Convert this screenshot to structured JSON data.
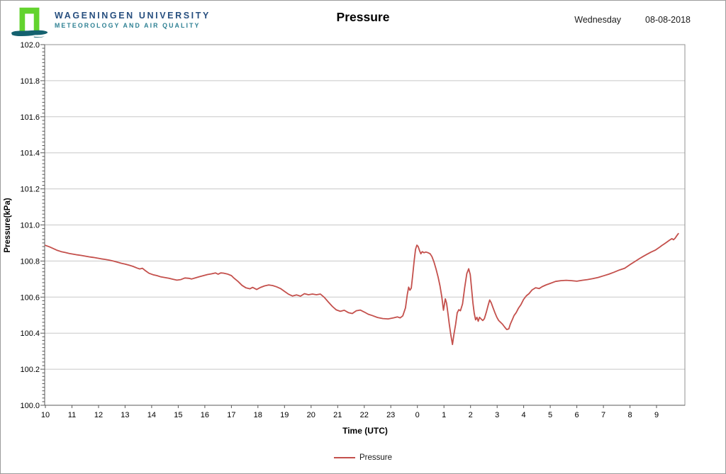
{
  "header": {
    "university_line1": "WAGENINGEN UNIVERSITY",
    "university_line2": "METEOROLOGY AND AIR QUALITY",
    "title": "Pressure",
    "weekday": "Wednesday",
    "date": "08-08-2018"
  },
  "legend": {
    "label": "Pressure"
  },
  "colors": {
    "line": "#c4504c",
    "grid": "#c8c8c8",
    "plot_border": "#909090",
    "axis": "#595959",
    "logo_green": "#63d32e",
    "logo_teal": "#14616f",
    "uni_text": "#274f7f",
    "uni_subtext": "#2e8093"
  },
  "chart_data": {
    "type": "line",
    "title": "Pressure",
    "xlabel": "Time (UTC)",
    "ylabel": "Pressure(kPa)",
    "ylim": [
      100.0,
      102.0
    ],
    "xlim_hours": [
      10,
      34.1
    ],
    "ytick_interval": 0.2,
    "ytick_minor": 0.02,
    "grid": "horizontal-major",
    "legend_position": "bottom-center",
    "y_tick_labels": [
      "102.0",
      "101.8",
      "101.6",
      "101.4",
      "101.2",
      "101.0",
      "100.8",
      "100.6",
      "100.4",
      "100.2",
      "100.0"
    ],
    "x_tick_labels": [
      "10",
      "11",
      "12",
      "13",
      "14",
      "15",
      "16",
      "17",
      "18",
      "19",
      "20",
      "21",
      "22",
      "23",
      "0",
      "1",
      "2",
      "3",
      "4",
      "5",
      "6",
      "7",
      "8",
      "9"
    ],
    "series": [
      {
        "name": "Pressure",
        "color": "#c4504c",
        "x_unit": "hours since first-day midnight (24+ = next day)",
        "points": [
          [
            10.0,
            100.887
          ],
          [
            10.15,
            100.879
          ],
          [
            10.3,
            100.869
          ],
          [
            10.45,
            100.859
          ],
          [
            10.6,
            100.852
          ],
          [
            10.75,
            100.847
          ],
          [
            10.9,
            100.842
          ],
          [
            11.05,
            100.838
          ],
          [
            11.2,
            100.834
          ],
          [
            11.35,
            100.831
          ],
          [
            11.5,
            100.827
          ],
          [
            11.65,
            100.823
          ],
          [
            11.8,
            100.82
          ],
          [
            11.95,
            100.816
          ],
          [
            12.1,
            100.812
          ],
          [
            12.25,
            100.809
          ],
          [
            12.4,
            100.805
          ],
          [
            12.55,
            100.8
          ],
          [
            12.7,
            100.794
          ],
          [
            12.85,
            100.788
          ],
          [
            13.0,
            100.783
          ],
          [
            13.15,
            100.777
          ],
          [
            13.3,
            100.77
          ],
          [
            13.45,
            100.761
          ],
          [
            13.55,
            100.756
          ],
          [
            13.65,
            100.76
          ],
          [
            13.75,
            100.748
          ],
          [
            13.9,
            100.732
          ],
          [
            14.05,
            100.724
          ],
          [
            14.2,
            100.719
          ],
          [
            14.35,
            100.712
          ],
          [
            14.5,
            100.708
          ],
          [
            14.65,
            100.704
          ],
          [
            14.8,
            100.699
          ],
          [
            14.95,
            100.694
          ],
          [
            15.1,
            100.697
          ],
          [
            15.25,
            100.706
          ],
          [
            15.4,
            100.704
          ],
          [
            15.5,
            100.7
          ],
          [
            15.65,
            100.707
          ],
          [
            15.8,
            100.713
          ],
          [
            15.95,
            100.719
          ],
          [
            16.1,
            100.725
          ],
          [
            16.25,
            100.729
          ],
          [
            16.4,
            100.734
          ],
          [
            16.5,
            100.727
          ],
          [
            16.6,
            100.734
          ],
          [
            16.7,
            100.733
          ],
          [
            16.85,
            100.728
          ],
          [
            17.0,
            100.719
          ],
          [
            17.1,
            100.705
          ],
          [
            17.25,
            100.687
          ],
          [
            17.4,
            100.665
          ],
          [
            17.55,
            100.651
          ],
          [
            17.7,
            100.646
          ],
          [
            17.8,
            100.654
          ],
          [
            17.95,
            100.642
          ],
          [
            18.1,
            100.654
          ],
          [
            18.25,
            100.662
          ],
          [
            18.4,
            100.667
          ],
          [
            18.55,
            100.664
          ],
          [
            18.7,
            100.657
          ],
          [
            18.85,
            100.647
          ],
          [
            19.0,
            100.632
          ],
          [
            19.15,
            100.616
          ],
          [
            19.3,
            100.606
          ],
          [
            19.45,
            100.612
          ],
          [
            19.6,
            100.605
          ],
          [
            19.75,
            100.619
          ],
          [
            19.9,
            100.613
          ],
          [
            20.05,
            100.617
          ],
          [
            20.2,
            100.613
          ],
          [
            20.35,
            100.617
          ],
          [
            20.5,
            100.598
          ],
          [
            20.65,
            100.572
          ],
          [
            20.8,
            100.548
          ],
          [
            20.95,
            100.529
          ],
          [
            21.1,
            100.521
          ],
          [
            21.25,
            100.527
          ],
          [
            21.4,
            100.514
          ],
          [
            21.55,
            100.509
          ],
          [
            21.7,
            100.524
          ],
          [
            21.85,
            100.528
          ],
          [
            22.0,
            100.517
          ],
          [
            22.15,
            100.505
          ],
          [
            22.3,
            100.498
          ],
          [
            22.5,
            100.487
          ],
          [
            22.7,
            100.481
          ],
          [
            22.9,
            100.479
          ],
          [
            23.1,
            100.485
          ],
          [
            23.25,
            100.49
          ],
          [
            23.35,
            100.485
          ],
          [
            23.45,
            100.496
          ],
          [
            23.55,
            100.54
          ],
          [
            23.62,
            100.615
          ],
          [
            23.67,
            100.655
          ],
          [
            23.72,
            100.638
          ],
          [
            23.77,
            100.65
          ],
          [
            23.82,
            100.718
          ],
          [
            23.88,
            100.802
          ],
          [
            23.93,
            100.865
          ],
          [
            23.98,
            100.888
          ],
          [
            24.03,
            100.88
          ],
          [
            24.08,
            100.858
          ],
          [
            24.13,
            100.84
          ],
          [
            24.18,
            100.852
          ],
          [
            24.25,
            100.846
          ],
          [
            24.32,
            100.85
          ],
          [
            24.4,
            100.846
          ],
          [
            24.48,
            100.84
          ],
          [
            24.55,
            100.824
          ],
          [
            24.62,
            100.796
          ],
          [
            24.7,
            100.756
          ],
          [
            24.78,
            100.71
          ],
          [
            24.85,
            100.662
          ],
          [
            24.92,
            100.6
          ],
          [
            24.98,
            100.527
          ],
          [
            25.05,
            100.59
          ],
          [
            25.1,
            100.566
          ],
          [
            25.15,
            100.51
          ],
          [
            25.2,
            100.45
          ],
          [
            25.26,
            100.39
          ],
          [
            25.32,
            100.337
          ],
          [
            25.38,
            100.397
          ],
          [
            25.44,
            100.45
          ],
          [
            25.5,
            100.513
          ],
          [
            25.56,
            100.53
          ],
          [
            25.62,
            100.524
          ],
          [
            25.7,
            100.562
          ],
          [
            25.78,
            100.652
          ],
          [
            25.86,
            100.73
          ],
          [
            25.93,
            100.757
          ],
          [
            25.99,
            100.724
          ],
          [
            26.04,
            100.645
          ],
          [
            26.09,
            100.566
          ],
          [
            26.14,
            100.51
          ],
          [
            26.19,
            100.474
          ],
          [
            26.24,
            100.488
          ],
          [
            26.29,
            100.466
          ],
          [
            26.34,
            100.488
          ],
          [
            26.4,
            100.478
          ],
          [
            26.46,
            100.47
          ],
          [
            26.52,
            100.48
          ],
          [
            26.6,
            100.52
          ],
          [
            26.66,
            100.553
          ],
          [
            26.72,
            100.584
          ],
          [
            26.78,
            100.568
          ],
          [
            26.85,
            100.54
          ],
          [
            26.92,
            100.512
          ],
          [
            26.99,
            100.488
          ],
          [
            27.06,
            100.47
          ],
          [
            27.13,
            100.46
          ],
          [
            27.2,
            100.45
          ],
          [
            27.28,
            100.434
          ],
          [
            27.36,
            100.42
          ],
          [
            27.44,
            100.424
          ],
          [
            27.5,
            100.451
          ],
          [
            27.57,
            100.474
          ],
          [
            27.64,
            100.498
          ],
          [
            27.72,
            100.514
          ],
          [
            27.8,
            100.537
          ],
          [
            27.9,
            100.559
          ],
          [
            28.0,
            100.588
          ],
          [
            28.1,
            100.607
          ],
          [
            28.2,
            100.619
          ],
          [
            28.32,
            100.64
          ],
          [
            28.45,
            100.652
          ],
          [
            28.58,
            100.647
          ],
          [
            28.7,
            100.658
          ],
          [
            28.85,
            100.668
          ],
          [
            29.0,
            100.676
          ],
          [
            29.2,
            100.687
          ],
          [
            29.4,
            100.691
          ],
          [
            29.6,
            100.693
          ],
          [
            29.8,
            100.691
          ],
          [
            30.0,
            100.688
          ],
          [
            30.2,
            100.693
          ],
          [
            30.4,
            100.697
          ],
          [
            30.6,
            100.702
          ],
          [
            30.8,
            100.709
          ],
          [
            31.0,
            100.718
          ],
          [
            31.2,
            100.727
          ],
          [
            31.4,
            100.738
          ],
          [
            31.6,
            100.75
          ],
          [
            31.8,
            100.76
          ],
          [
            32.0,
            100.78
          ],
          [
            32.2,
            100.799
          ],
          [
            32.35,
            100.813
          ],
          [
            32.5,
            100.826
          ],
          [
            32.65,
            100.838
          ],
          [
            32.8,
            100.85
          ],
          [
            32.95,
            100.86
          ],
          [
            33.1,
            100.875
          ],
          [
            33.2,
            100.886
          ],
          [
            33.3,
            100.896
          ],
          [
            33.4,
            100.906
          ],
          [
            33.5,
            100.917
          ],
          [
            33.58,
            100.924
          ],
          [
            33.64,
            100.918
          ],
          [
            33.7,
            100.927
          ],
          [
            33.76,
            100.94
          ],
          [
            33.82,
            100.952
          ]
        ]
      }
    ]
  }
}
